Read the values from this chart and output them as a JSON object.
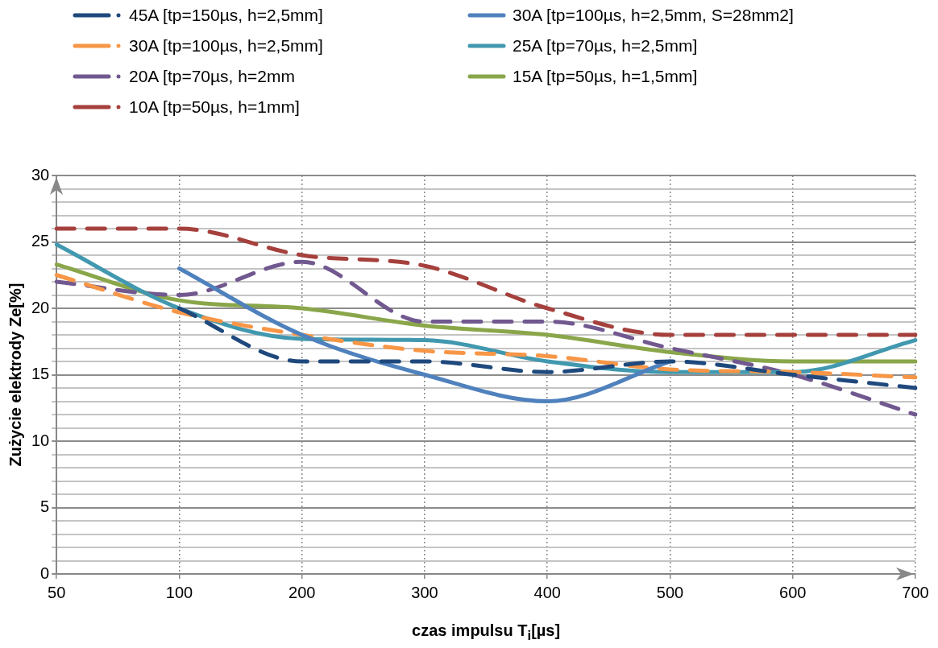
{
  "chart_data": {
    "type": "line",
    "xlabel": "czas impulsu T$_{i}$[µs]",
    "ylabel": "Zużycie elektrody Ze[%]",
    "categories": [
      "50",
      "100",
      "200",
      "300",
      "400",
      "500",
      "600",
      "700"
    ],
    "series": [
      {
        "name": "45A [tp=150µs, h=2,5mm]",
        "color": "#1f497d",
        "line_style": "dashed",
        "values": [
          null,
          20,
          16,
          16,
          15.2,
          16,
          15,
          14
        ]
      },
      {
        "name": "30A [tp=100µs, h=2,5mm, S=28mm2]",
        "color": "#4f81bd",
        "line_style": "solid",
        "values": [
          null,
          23,
          18,
          15,
          13,
          16,
          null,
          null
        ]
      },
      {
        "name": "30A [tp=100µs, h=2,5mm]",
        "color": "#f79646",
        "line_style": "dashed",
        "values": [
          22.5,
          19.7,
          18,
          16.8,
          16.4,
          15.4,
          15.2,
          14.8
        ]
      },
      {
        "name": "25A [tp=70µs, h=2,5mm]",
        "color": "#4198af",
        "line_style": "solid",
        "values": [
          24.8,
          20,
          17.7,
          17.6,
          16,
          15.2,
          15.2,
          17.6
        ]
      },
      {
        "name": "20A [tp=70µs, h=2mm",
        "color": "#71588f",
        "line_style": "dashed",
        "values": [
          22,
          21,
          23.5,
          19,
          19,
          17,
          15,
          12
        ]
      },
      {
        "name": "15A [tp=50µs, h=1,5mm]",
        "color": "#8aa64a",
        "line_style": "solid",
        "values": [
          23.3,
          20.6,
          20,
          18.7,
          18,
          16.7,
          16,
          16
        ]
      },
      {
        "name": "10A [tp=50µs, h=1mm]",
        "color": "#a5403d",
        "line_style": "dashed",
        "values": [
          26,
          26,
          24,
          23.2,
          20,
          18,
          18,
          18
        ]
      }
    ],
    "ylim": [
      0,
      30
    ],
    "yticks": [
      0,
      {
        "value": 1,
        "label": null
      },
      {
        "value": 2,
        "label": null
      },
      {
        "value": 3,
        "label": null
      },
      {
        "value": 4,
        "label": null
      },
      5,
      {
        "value": 6,
        "label": null
      },
      {
        "value": 7,
        "label": null
      },
      {
        "value": 8,
        "label": null
      },
      {
        "value": 9,
        "label": null
      },
      10,
      {
        "value": 11,
        "label": null
      },
      {
        "value": 12,
        "label": null
      },
      {
        "value": 13,
        "label": null
      },
      {
        "value": 14,
        "label": null
      },
      15,
      {
        "value": 16,
        "label": null
      },
      {
        "value": 17,
        "label": null
      },
      {
        "value": 18,
        "label": null
      },
      {
        "value": 19,
        "label": null
      },
      20,
      {
        "value": 21,
        "label": null
      },
      {
        "value": 22,
        "label": null
      },
      {
        "value": 23,
        "label": null
      },
      {
        "value": 24,
        "label": null
      },
      25,
      {
        "value": 26,
        "label": null
      },
      {
        "value": 27,
        "label": null
      },
      {
        "value": 28,
        "label": null
      },
      {
        "value": 29,
        "label": null
      },
      30
    ],
    "grid": true,
    "legend": "top",
    "marker": "none"
  }
}
